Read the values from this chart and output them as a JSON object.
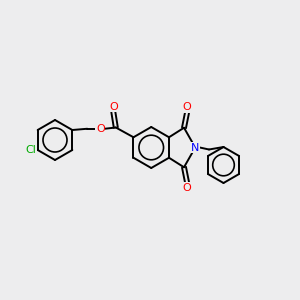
{
  "background_color": "#ededee",
  "bond_color": "#000000",
  "nitrogen_color": "#0000ff",
  "oxygen_color": "#ff0000",
  "chlorine_color": "#00aa00",
  "bond_width": 1.4,
  "figsize": [
    3.0,
    3.0
  ],
  "dpi": 100,
  "xlim": [
    0,
    12
  ],
  "ylim": [
    0,
    10
  ]
}
